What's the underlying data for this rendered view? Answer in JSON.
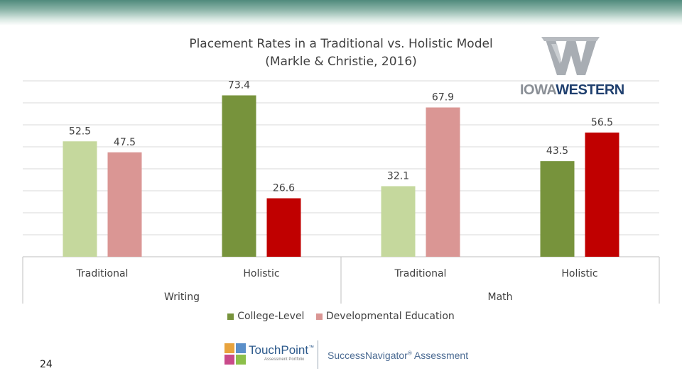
{
  "chart_data": {
    "type": "bar",
    "title_lines": [
      "Placement Rates in a Traditional vs. Holistic Model",
      "(Markle & Christie, 2016)"
    ],
    "groups": [
      "Writing",
      "Math"
    ],
    "categories": [
      {
        "label": "Traditional",
        "group": "Writing"
      },
      {
        "label": "Holistic",
        "group": "Writing"
      },
      {
        "label": "Traditional",
        "group": "Math"
      },
      {
        "label": "Holistic",
        "group": "Math"
      }
    ],
    "series": [
      {
        "name": "College-Level",
        "values": [
          52.5,
          73.4,
          32.1,
          43.5
        ],
        "colors": [
          "#c5d89d",
          "#77933c",
          "#c5d89d",
          "#77933c"
        ]
      },
      {
        "name": "Developmental Education",
        "values": [
          47.5,
          26.6,
          67.9,
          56.5
        ],
        "colors": [
          "#da9694",
          "#c00000",
          "#da9694",
          "#c00000"
        ]
      }
    ],
    "legend_colors": [
      "#77933c",
      "#da9694"
    ],
    "ylim": [
      0,
      80
    ],
    "grid": true,
    "legend_position": "bottom"
  },
  "logos": {
    "iowa_western": {
      "word1": "IOWA",
      "word2": "WESTERN"
    },
    "touchpoint": {
      "name": "TouchPoint",
      "tm": "™",
      "sub": "Assessment Portfolio"
    },
    "successnavigator": {
      "name": "SuccessNavigator",
      "reg": "®",
      "suffix": " Assessment"
    }
  },
  "page_number": "24"
}
